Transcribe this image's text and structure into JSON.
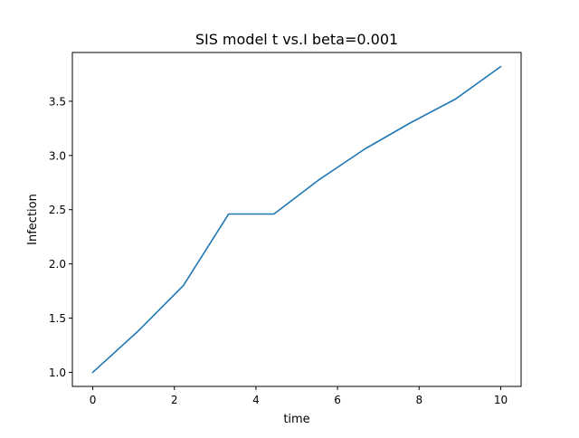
{
  "chart_data": {
    "type": "line",
    "title": "SIS model t vs.I beta=0.001",
    "xlabel": "time",
    "ylabel": "Infection",
    "xlim": [
      -0.5,
      10.5
    ],
    "ylim": [
      0.87,
      3.95
    ],
    "xticks": [
      0,
      2,
      4,
      6,
      8,
      10
    ],
    "xtick_labels": [
      "0",
      "2",
      "4",
      "6",
      "8",
      "10"
    ],
    "yticks": [
      1.0,
      1.5,
      2.0,
      2.5,
      3.0,
      3.5
    ],
    "ytick_labels": [
      "1.0",
      "1.5",
      "2.0",
      "2.5",
      "3.0",
      "3.5"
    ],
    "grid": false,
    "series": [
      {
        "color": "#1f77b4",
        "x": [
          0,
          1.11,
          2.22,
          3.33,
          4.44,
          5.56,
          6.67,
          7.78,
          8.89,
          10
        ],
        "y": [
          1.0,
          1.38,
          1.8,
          2.46,
          2.46,
          2.78,
          3.06,
          3.3,
          3.52,
          3.82
        ]
      }
    ]
  }
}
